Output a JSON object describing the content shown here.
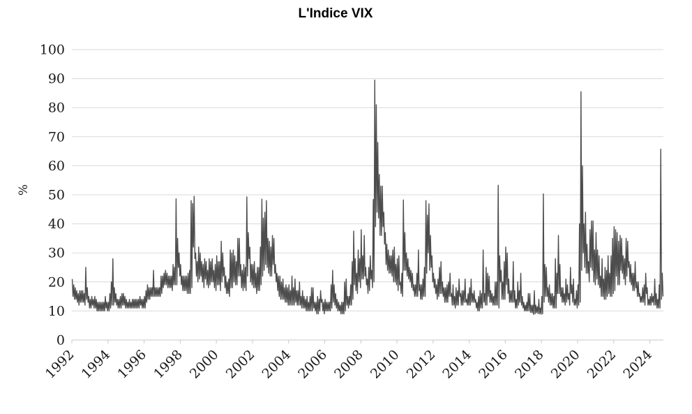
{
  "chart_data": {
    "type": "line",
    "title": "L'Indice VIX",
    "ylabel": "%",
    "xlabel": "",
    "legend": "none",
    "grid": "horizontal",
    "ylim": [
      0,
      100
    ],
    "xlim": [
      1992,
      2024.75
    ],
    "y_ticks": [
      0,
      10,
      20,
      30,
      40,
      50,
      60,
      70,
      80,
      90,
      100
    ],
    "x_ticks": [
      1992,
      1994,
      1996,
      1998,
      2000,
      2002,
      2004,
      2006,
      2008,
      2010,
      2012,
      2014,
      2016,
      2018,
      2020,
      2022,
      2024
    ],
    "line_color": "#4d4d4d",
    "grid_color": "#d9d9d9",
    "axis_color": "#c9c9c9",
    "text_color": "#1a1a1a",
    "series_name": "VIX",
    "resolution": "monthly low/high envelope of daily VIX values",
    "start_year": 1992,
    "monthly_lo_hi": [
      [
        15,
        21
      ],
      [
        14,
        19
      ],
      [
        14,
        18
      ],
      [
        13,
        17
      ],
      [
        12,
        16
      ],
      [
        13,
        17
      ],
      [
        13,
        17
      ],
      [
        13,
        17
      ],
      [
        12,
        16
      ],
      [
        14,
        25
      ],
      [
        13,
        18
      ],
      [
        11,
        15
      ],
      [
        11,
        14
      ],
      [
        12,
        15
      ],
      [
        11,
        14
      ],
      [
        11,
        15
      ],
      [
        10,
        14
      ],
      [
        10,
        13
      ],
      [
        10,
        13
      ],
      [
        10,
        13
      ],
      [
        10,
        13
      ],
      [
        10,
        13
      ],
      [
        11,
        15
      ],
      [
        10,
        13
      ],
      [
        10,
        13
      ],
      [
        11,
        16
      ],
      [
        12,
        20
      ],
      [
        12,
        28
      ],
      [
        13,
        18
      ],
      [
        12,
        16
      ],
      [
        11,
        14
      ],
      [
        11,
        14
      ],
      [
        11,
        15
      ],
      [
        12,
        16
      ],
      [
        12,
        16
      ],
      [
        11,
        15
      ],
      [
        11,
        14
      ],
      [
        11,
        13
      ],
      [
        11,
        14
      ],
      [
        11,
        13
      ],
      [
        11,
        14
      ],
      [
        11,
        14
      ],
      [
        11,
        14
      ],
      [
        11,
        14
      ],
      [
        11,
        14
      ],
      [
        12,
        15
      ],
      [
        11,
        14
      ],
      [
        11,
        14
      ],
      [
        11,
        15
      ],
      [
        13,
        17
      ],
      [
        14,
        19
      ],
      [
        14,
        18
      ],
      [
        15,
        18
      ],
      [
        15,
        18
      ],
      [
        15,
        24
      ],
      [
        15,
        18
      ],
      [
        15,
        18
      ],
      [
        15,
        18
      ],
      [
        15,
        18
      ],
      [
        16,
        22
      ],
      [
        18,
        22
      ],
      [
        19,
        23
      ],
      [
        19,
        24
      ],
      [
        18,
        23
      ],
      [
        18,
        22
      ],
      [
        18,
        22
      ],
      [
        17,
        22
      ],
      [
        19,
        26
      ],
      [
        19,
        25
      ],
      [
        19,
        48.6
      ],
      [
        25,
        35
      ],
      [
        22,
        30
      ],
      [
        19,
        26
      ],
      [
        17,
        22
      ],
      [
        17,
        22
      ],
      [
        17,
        22
      ],
      [
        16,
        22
      ],
      [
        16,
        23
      ],
      [
        16,
        24
      ],
      [
        18,
        48
      ],
      [
        32,
        47
      ],
      [
        28,
        49.5
      ],
      [
        22,
        30
      ],
      [
        20,
        27
      ],
      [
        21,
        32
      ],
      [
        22,
        30
      ],
      [
        20,
        27
      ],
      [
        18,
        26
      ],
      [
        21,
        28
      ],
      [
        19,
        27
      ],
      [
        18,
        24
      ],
      [
        19,
        28
      ],
      [
        20,
        27
      ],
      [
        20,
        28
      ],
      [
        18,
        24
      ],
      [
        17,
        26
      ],
      [
        19,
        29
      ],
      [
        19,
        27
      ],
      [
        17,
        27
      ],
      [
        20,
        34
      ],
      [
        22,
        30
      ],
      [
        18,
        25
      ],
      [
        16,
        22
      ],
      [
        16,
        20
      ],
      [
        15,
        21
      ],
      [
        18,
        31
      ],
      [
        18,
        30
      ],
      [
        20,
        31
      ],
      [
        19,
        29
      ],
      [
        19,
        27
      ],
      [
        22,
        35
      ],
      [
        22,
        35
      ],
      [
        18,
        26
      ],
      [
        17,
        24
      ],
      [
        18,
        26
      ],
      [
        17,
        25
      ],
      [
        22,
        49.3
      ],
      [
        28,
        37
      ],
      [
        20,
        32
      ],
      [
        19,
        26
      ],
      [
        18,
        26
      ],
      [
        18,
        27
      ],
      [
        16,
        23
      ],
      [
        17,
        25
      ],
      [
        17,
        25
      ],
      [
        19,
        32
      ],
      [
        22,
        48.5
      ],
      [
        24,
        42
      ],
      [
        26,
        44
      ],
      [
        25,
        48
      ],
      [
        23,
        35
      ],
      [
        22,
        34
      ],
      [
        22,
        32
      ],
      [
        26,
        36
      ],
      [
        23,
        35
      ],
      [
        20,
        26
      ],
      [
        17,
        23
      ],
      [
        15,
        22
      ],
      [
        14,
        22
      ],
      [
        14,
        20
      ],
      [
        14,
        21
      ],
      [
        13,
        18
      ],
      [
        13,
        19
      ],
      [
        12,
        18
      ],
      [
        12,
        19
      ],
      [
        12,
        17
      ],
      [
        12,
        22
      ],
      [
        12,
        18
      ],
      [
        13,
        21
      ],
      [
        12,
        17
      ],
      [
        12,
        17
      ],
      [
        12,
        20
      ],
      [
        11,
        15
      ],
      [
        11,
        17
      ],
      [
        11,
        15
      ],
      [
        10,
        14
      ],
      [
        10,
        15
      ],
      [
        10,
        13
      ],
      [
        10,
        15
      ],
      [
        10,
        18
      ],
      [
        11,
        18
      ],
      [
        10,
        13
      ],
      [
        9,
        13
      ],
      [
        9,
        15
      ],
      [
        10,
        14
      ],
      [
        13,
        17
      ],
      [
        10,
        14
      ],
      [
        9,
        13
      ],
      [
        10,
        14
      ],
      [
        10,
        13
      ],
      [
        10,
        13
      ],
      [
        10,
        13
      ],
      [
        11,
        19
      ],
      [
        13,
        24
      ],
      [
        12,
        19
      ],
      [
        11,
        16
      ],
      [
        10,
        14
      ],
      [
        10,
        13
      ],
      [
        9,
        12
      ],
      [
        9,
        13
      ],
      [
        9,
        13
      ],
      [
        10,
        20
      ],
      [
        12,
        21
      ],
      [
        11,
        15
      ],
      [
        12,
        15
      ],
      [
        12,
        19
      ],
      [
        14,
        27
      ],
      [
        19,
        37.5
      ],
      [
        17,
        28
      ],
      [
        16,
        23
      ],
      [
        20,
        31
      ],
      [
        18,
        28
      ],
      [
        21,
        38
      ],
      [
        21,
        29
      ],
      [
        22,
        36
      ],
      [
        19,
        25
      ],
      [
        16,
        21
      ],
      [
        17,
        25
      ],
      [
        21,
        29
      ],
      [
        18,
        24
      ],
      [
        20,
        48.4
      ],
      [
        39,
        89.5
      ],
      [
        44,
        81
      ],
      [
        42,
        68
      ],
      [
        36,
        57
      ],
      [
        36,
        53
      ],
      [
        39,
        53
      ],
      [
        33,
        44
      ],
      [
        26,
        37
      ],
      [
        24,
        33
      ],
      [
        23,
        31
      ],
      [
        23,
        29
      ],
      [
        22,
        29
      ],
      [
        20,
        31
      ],
      [
        20,
        32
      ],
      [
        19,
        26
      ],
      [
        17,
        28
      ],
      [
        19,
        29
      ],
      [
        16,
        20
      ],
      [
        15,
        23
      ],
      [
        24,
        48.2
      ],
      [
        24,
        37
      ],
      [
        22,
        30
      ],
      [
        21,
        28
      ],
      [
        20,
        25
      ],
      [
        18,
        24
      ],
      [
        17,
        23
      ],
      [
        15,
        19
      ],
      [
        15,
        19
      ],
      [
        15,
        23
      ],
      [
        17,
        31
      ],
      [
        14,
        19
      ],
      [
        14,
        19
      ],
      [
        15,
        21
      ],
      [
        15,
        25
      ],
      [
        23,
        48
      ],
      [
        30,
        43
      ],
      [
        24,
        46.9
      ],
      [
        25,
        36
      ],
      [
        20,
        29
      ],
      [
        18,
        23
      ],
      [
        16,
        21
      ],
      [
        14,
        19
      ],
      [
        15,
        21
      ],
      [
        16,
        25
      ],
      [
        16,
        27
      ],
      [
        15,
        20
      ],
      [
        13,
        18
      ],
      [
        13,
        18
      ],
      [
        13,
        19
      ],
      [
        15,
        20
      ],
      [
        15,
        23
      ],
      [
        12,
        16
      ],
      [
        12,
        19
      ],
      [
        11,
        15
      ],
      [
        12,
        18
      ],
      [
        12,
        17
      ],
      [
        15,
        21
      ],
      [
        12,
        16
      ],
      [
        12,
        17
      ],
      [
        13,
        17
      ],
      [
        13,
        21
      ],
      [
        12,
        14
      ],
      [
        12,
        16
      ],
      [
        12,
        18
      ],
      [
        13,
        21
      ],
      [
        13,
        16
      ],
      [
        13,
        17
      ],
      [
        11,
        14
      ],
      [
        10,
        13
      ],
      [
        10,
        15
      ],
      [
        11,
        17
      ],
      [
        11,
        16
      ],
      [
        13,
        31
      ],
      [
        12,
        16
      ],
      [
        12,
        25
      ],
      [
        15,
        23
      ],
      [
        13,
        22
      ],
      [
        13,
        17
      ],
      [
        12,
        16
      ],
      [
        12,
        15
      ],
      [
        12,
        20
      ],
      [
        12,
        20
      ],
      [
        11,
        53.3
      ],
      [
        20,
        29
      ],
      [
        14,
        24
      ],
      [
        14,
        20
      ],
      [
        14,
        27
      ],
      [
        19,
        32
      ],
      [
        16,
        30
      ],
      [
        13,
        21
      ],
      [
        13,
        17
      ],
      [
        13,
        17
      ],
      [
        13,
        27
      ],
      [
        11,
        17
      ],
      [
        11,
        14
      ],
      [
        12,
        20
      ],
      [
        13,
        17
      ],
      [
        12,
        23
      ],
      [
        11,
        15
      ],
      [
        10,
        13
      ],
      [
        10,
        12
      ],
      [
        10,
        13
      ],
      [
        10,
        16
      ],
      [
        9.5,
        16
      ],
      [
        9.4,
        12
      ],
      [
        8.8,
        12
      ],
      [
        9,
        17
      ],
      [
        9.4,
        12
      ],
      [
        9.1,
        11.5
      ],
      [
        9,
        14
      ],
      [
        8.9,
        11
      ],
      [
        9,
        15
      ],
      [
        13,
        50.3
      ],
      [
        15,
        26
      ],
      [
        15,
        25
      ],
      [
        13,
        18
      ],
      [
        12,
        19
      ],
      [
        12,
        16
      ],
      [
        11,
        16
      ],
      [
        11,
        15
      ],
      [
        11,
        28
      ],
      [
        16,
        23
      ],
      [
        16,
        36
      ],
      [
        15,
        26
      ],
      [
        13,
        18
      ],
      [
        13,
        18
      ],
      [
        12,
        16
      ],
      [
        13,
        21
      ],
      [
        14,
        19
      ],
      [
        12,
        16
      ],
      [
        16,
        25
      ],
      [
        13,
        19
      ],
      [
        12,
        21
      ],
      [
        12,
        14
      ],
      [
        11,
        17
      ],
      [
        12,
        19
      ],
      [
        13,
        40
      ],
      [
        24,
        85.5
      ],
      [
        30,
        60
      ],
      [
        25,
        40
      ],
      [
        23,
        44
      ],
      [
        23,
        33
      ],
      [
        20,
        27
      ],
      [
        25,
        38
      ],
      [
        24,
        41
      ],
      [
        20,
        41
      ],
      [
        19,
        31
      ],
      [
        21,
        37
      ],
      [
        19,
        31
      ],
      [
        18,
        29
      ],
      [
        15,
        22
      ],
      [
        15,
        28
      ],
      [
        14,
        21
      ],
      [
        14,
        25
      ],
      [
        15,
        24
      ],
      [
        16,
        29
      ],
      [
        15,
        23
      ],
      [
        15,
        29
      ],
      [
        16,
        35
      ],
      [
        17,
        39
      ],
      [
        22,
        38
      ],
      [
        19,
        37
      ],
      [
        19,
        34
      ],
      [
        24,
        36
      ],
      [
        23,
        35
      ],
      [
        21,
        29
      ],
      [
        19,
        28
      ],
      [
        22,
        35
      ],
      [
        25,
        34
      ],
      [
        20,
        27
      ],
      [
        19,
        26
      ],
      [
        17,
        23
      ],
      [
        17,
        23
      ],
      [
        18,
        27
      ],
      [
        15,
        20
      ],
      [
        15,
        20
      ],
      [
        13,
        16
      ],
      [
        13,
        15
      ],
      [
        13,
        18
      ],
      [
        12,
        19
      ],
      [
        16,
        23
      ],
      [
        12,
        18
      ],
      [
        12,
        14
      ],
      [
        12,
        15
      ],
      [
        13,
        16
      ],
      [
        12,
        15
      ],
      [
        12,
        21
      ],
      [
        11,
        16
      ],
      [
        11,
        14
      ],
      [
        11,
        19
      ],
      [
        14,
        65.7
      ],
      [
        15,
        23
      ]
    ]
  }
}
